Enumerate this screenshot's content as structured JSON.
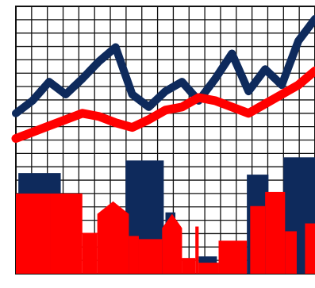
{
  "colors": {
    "background": "#ffffff",
    "grid": "#111111",
    "navy": "#0e2a5c",
    "red": "#ff0000"
  },
  "chart_data": {
    "type": "line",
    "grid": true,
    "x": [
      0,
      1,
      2,
      3,
      4,
      5,
      6,
      7,
      8,
      9,
      10,
      11,
      12,
      13,
      14,
      15,
      16,
      17,
      18
    ],
    "xlim": [
      0,
      18
    ],
    "ylim": [
      0,
      17
    ],
    "series": [
      {
        "color": "#0e2a5c",
        "values": [
          10.2,
          11.0,
          12.2,
          11.4,
          12.4,
          13.5,
          14.4,
          11.4,
          10.6,
          11.6,
          12.2,
          11.0,
          12.4,
          14.0,
          11.6,
          13.0,
          12.0,
          14.8,
          16.2
        ]
      },
      {
        "color": "#ff0000",
        "values": [
          8.6,
          9.0,
          9.4,
          9.8,
          10.2,
          10.0,
          9.6,
          9.3,
          9.8,
          10.4,
          10.6,
          11.2,
          11.0,
          10.6,
          10.2,
          10.8,
          11.4,
          12.0,
          12.9
        ]
      }
    ],
    "skyline": {
      "navy": [
        {
          "x0": 0.15,
          "x1": 2.7,
          "height": 6.4
        },
        {
          "x0": 2.15,
          "x1": 2.6,
          "height": 4.4
        },
        {
          "x0": 6.6,
          "x1": 8.9,
          "height": 7.2
        },
        {
          "x0": 9.0,
          "x1": 9.6,
          "height": 3.9
        },
        {
          "x0": 11.0,
          "x1": 12.1,
          "height": 1.1
        },
        {
          "x0": 13.9,
          "x1": 15.2,
          "height": 6.3
        },
        {
          "x0": 16.1,
          "x1": 18.0,
          "height": 7.4
        }
      ],
      "red": [
        {
          "x0": 0.0,
          "x1": 2.1,
          "height": 5.1
        },
        {
          "x0": 2.1,
          "x1": 4.0,
          "height": 5.1
        },
        {
          "x0": 4.0,
          "x1": 4.9,
          "height": 2.6
        },
        {
          "x0": 4.9,
          "x1": 6.8,
          "height": 3.8,
          "roof": 4.6
        },
        {
          "x0": 6.8,
          "x1": 7.4,
          "height": 2.4
        },
        {
          "x0": 7.4,
          "x1": 8.8,
          "height": 2.2
        },
        {
          "x0": 8.8,
          "x1": 10.0,
          "height": 2.9,
          "roof": 3.8
        },
        {
          "x0": 10.0,
          "x1": 10.8,
          "height": 1.0
        },
        {
          "x0": 10.8,
          "x1": 11.0,
          "height": 3.0
        },
        {
          "x0": 11.0,
          "x1": 12.2,
          "height": 0.7
        },
        {
          "x0": 12.2,
          "x1": 13.9,
          "height": 2.1
        },
        {
          "x0": 14.1,
          "x1": 15.0,
          "height": 4.3
        },
        {
          "x0": 15.0,
          "x1": 16.2,
          "height": 5.2
        },
        {
          "x0": 16.2,
          "x1": 16.9,
          "height": 2.7
        },
        {
          "x0": 17.4,
          "x1": 18.0,
          "height": 3.2
        }
      ]
    }
  }
}
